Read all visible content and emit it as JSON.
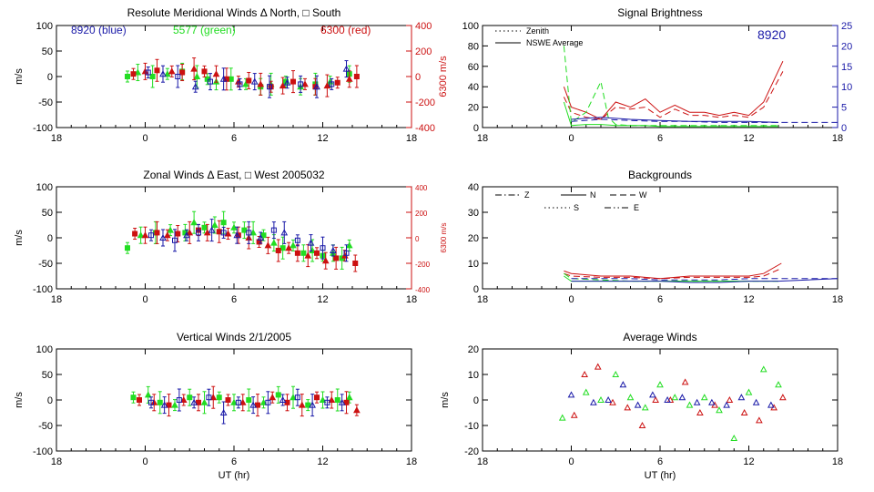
{
  "colors": {
    "blue": "#1a1aa8",
    "green": "#22dd22",
    "red": "#cc1111",
    "axis": "#000000"
  },
  "chart_data": [
    {
      "id": "p1",
      "type": "scatter",
      "title": "Resolute Meridional Winds Δ North, □ South",
      "xlabel": "",
      "ylabel": "m/s",
      "xticks": [
        "18",
        "0",
        "6",
        "12",
        "18"
      ],
      "ylim": [
        -100,
        100
      ],
      "yticks": [
        "100",
        "50",
        "0",
        "-50",
        "-100"
      ],
      "right_axis": {
        "label": "6300 m/s",
        "ylim": [
          -400,
          400
        ],
        "ticks": [
          "400",
          "200",
          "0",
          "-200",
          "-400"
        ]
      },
      "annotations": [
        {
          "text": "8920 (blue)",
          "color": "blue"
        },
        {
          "text": "5577 (green)",
          "color": "green"
        },
        {
          "text": "6300 (red)",
          "color": "red"
        }
      ],
      "series": [
        {
          "color": "green",
          "x": [
            -1.2,
            -0.5,
            0.5,
            1.5,
            2.5,
            3.5,
            4.2,
            4.8,
            5.8,
            6.8,
            7.8,
            8.5,
            9.5,
            10.5,
            11.5,
            12.5,
            13.8
          ],
          "y": [
            0,
            8,
            0,
            5,
            10,
            0,
            -5,
            -10,
            -5,
            -15,
            -20,
            -15,
            -10,
            -20,
            -15,
            -10,
            5
          ]
        },
        {
          "color": "red",
          "x": [
            -0.8,
            0,
            0.8,
            1.8,
            2.5,
            3.3,
            4.0,
            4.8,
            5.5,
            6.3,
            7.0,
            7.8,
            8.5,
            9.3,
            10.0,
            10.8,
            11.5,
            12.3,
            13.0,
            13.8,
            14.3
          ],
          "y": [
            5,
            10,
            12,
            10,
            8,
            15,
            10,
            5,
            -5,
            -10,
            -8,
            -15,
            -20,
            -18,
            -10,
            -15,
            -20,
            -18,
            -12,
            -5,
            0
          ]
        },
        {
          "color": "blue",
          "x": [
            0.2,
            1.2,
            2.2,
            3.4,
            4.4,
            5.3,
            6.4,
            7.4,
            8.4,
            9.6,
            10.5,
            11.6,
            12.6,
            13.6
          ],
          "y": [
            8,
            5,
            0,
            -20,
            -10,
            -5,
            -15,
            -10,
            -20,
            -12,
            -15,
            -20,
            -15,
            15
          ]
        }
      ]
    },
    {
      "id": "p2",
      "type": "line",
      "title": "Signal Brightness",
      "xlabel": "",
      "ylabel": "",
      "xticks": [
        "18",
        "0",
        "6",
        "12",
        "18"
      ],
      "ylim": [
        0,
        100
      ],
      "yticks": [
        "100",
        "80",
        "60",
        "40",
        "20",
        "0"
      ],
      "right_axis": {
        "label": "",
        "ylim": [
          0,
          25
        ],
        "ticks": [
          "25",
          "20",
          "15",
          "10",
          "5",
          "0"
        ]
      },
      "legend": [
        {
          "label": "Zenith",
          "dash": "dotted"
        },
        {
          "label": "NSWE Average",
          "dash": "solid"
        }
      ],
      "annotations": [
        {
          "text": "8920",
          "color": "blue"
        }
      ],
      "series": [
        {
          "color": "red",
          "style": "solid",
          "x": [
            -0.5,
            0,
            1,
            2,
            3,
            4,
            5,
            6,
            7,
            8,
            9,
            10,
            11,
            12,
            13,
            14.3
          ],
          "y": [
            40,
            20,
            15,
            8,
            25,
            20,
            28,
            15,
            22,
            15,
            15,
            12,
            15,
            12,
            25,
            65
          ]
        },
        {
          "color": "red",
          "style": "dashed",
          "x": [
            -0.5,
            0,
            1,
            2,
            3,
            4,
            5,
            6,
            7,
            8,
            9,
            10,
            11,
            12,
            13,
            14.3
          ],
          "y": [
            30,
            15,
            10,
            8,
            20,
            18,
            20,
            10,
            18,
            12,
            12,
            10,
            12,
            10,
            20,
            55
          ]
        },
        {
          "color": "green",
          "style": "solid",
          "x": [
            -0.5,
            0,
            1,
            2,
            3,
            4,
            5,
            6,
            7,
            8,
            9,
            10,
            11,
            12,
            13,
            14
          ],
          "y": [
            25,
            2,
            3,
            3,
            2,
            2,
            2,
            1,
            1,
            1,
            1,
            1,
            1,
            1,
            1,
            1
          ]
        },
        {
          "color": "green",
          "style": "dashed",
          "x": [
            -0.5,
            0,
            1,
            1.5,
            2,
            2.5,
            3,
            4,
            5,
            6,
            7,
            8,
            10,
            12,
            14
          ],
          "y": [
            80,
            5,
            15,
            30,
            45,
            10,
            3,
            2,
            2,
            2,
            2,
            2,
            2,
            2,
            2
          ]
        },
        {
          "color": "blue",
          "style": "solid",
          "x": [
            0,
            2,
            3,
            4,
            6,
            8,
            10,
            12,
            14
          ],
          "y": [
            8,
            10,
            9,
            8,
            7,
            6,
            6,
            6,
            5
          ]
        },
        {
          "color": "blue",
          "style": "dashed",
          "x": [
            0,
            2,
            4,
            6,
            8,
            10,
            12,
            14,
            18
          ],
          "y": [
            6,
            8,
            7,
            6,
            6,
            5,
            5,
            5,
            5
          ]
        }
      ]
    },
    {
      "id": "p3",
      "type": "scatter",
      "title": "Zonal Winds Δ East, □ West 2005032",
      "xlabel": "",
      "ylabel": "m/s",
      "xticks": [
        "18",
        "0",
        "6",
        "12",
        "18"
      ],
      "ylim": [
        -100,
        100
      ],
      "yticks": [
        "100",
        "50",
        "0",
        "-50",
        "-100"
      ],
      "right_axis": {
        "label": "6300 m/s",
        "ylim": [
          -400,
          400
        ],
        "ticks": [
          "400",
          "200",
          "0",
          "-200",
          "-400"
        ]
      },
      "series": [
        {
          "color": "green",
          "x": [
            -1.2,
            -0.3,
            0.7,
            1.7,
            2.7,
            3.3,
            4.0,
            4.7,
            5.3,
            6.0,
            6.7,
            7.3,
            8.0,
            8.7,
            9.3,
            10.0,
            10.7,
            11.3,
            12.0,
            12.7,
            13.3,
            13.8
          ],
          "y": [
            -20,
            5,
            10,
            15,
            10,
            30,
            20,
            25,
            30,
            20,
            15,
            10,
            5,
            -10,
            -20,
            -15,
            -30,
            -25,
            -35,
            -30,
            -40,
            -15
          ]
        },
        {
          "color": "red",
          "x": [
            -0.7,
            0,
            0.8,
            1.5,
            2.2,
            3.0,
            3.6,
            4.2,
            5.0,
            5.6,
            6.3,
            7.0,
            7.7,
            8.3,
            9.0,
            9.7,
            10.3,
            11.0,
            11.6,
            12.2,
            12.9,
            13.5,
            14.2
          ],
          "y": [
            8,
            5,
            10,
            5,
            8,
            10,
            15,
            10,
            12,
            8,
            5,
            0,
            -8,
            -15,
            -25,
            -20,
            -30,
            -35,
            -30,
            -45,
            -40,
            -35,
            -50
          ]
        },
        {
          "color": "blue",
          "x": [
            0.4,
            1.2,
            2.0,
            2.8,
            3.6,
            4.5,
            5.3,
            6.2,
            7.0,
            7.8,
            8.7,
            9.4,
            10.3,
            11.2,
            12.0,
            12.7,
            13.6
          ],
          "y": [
            5,
            0,
            -5,
            5,
            10,
            15,
            10,
            5,
            10,
            0,
            15,
            10,
            -5,
            -10,
            -20,
            -25,
            -30
          ]
        }
      ]
    },
    {
      "id": "p4",
      "type": "line",
      "title": "Backgrounds",
      "xlabel": "",
      "ylabel": "",
      "xticks": [
        "18",
        "0",
        "6",
        "12",
        "18"
      ],
      "ylim": [
        0,
        40
      ],
      "yticks": [
        "40",
        "30",
        "20",
        "10",
        "0"
      ],
      "legend": [
        {
          "label": "Z",
          "dash": "dashdot"
        },
        {
          "label": "N",
          "dash": "solid"
        },
        {
          "label": "W",
          "dash": "dashed"
        },
        {
          "label": "S",
          "dash": "dotted"
        },
        {
          "label": "E",
          "dash": "dashdotdot"
        }
      ],
      "series": [
        {
          "color": "red",
          "style": "solid",
          "x": [
            -0.5,
            0,
            2,
            4,
            6,
            8,
            10,
            12,
            13,
            14.2
          ],
          "y": [
            7,
            6,
            5,
            5,
            4,
            5,
            5,
            5,
            6,
            10
          ]
        },
        {
          "color": "red",
          "style": "dashed",
          "x": [
            -0.5,
            0,
            2,
            4,
            6,
            8,
            10,
            12,
            13,
            14.2
          ],
          "y": [
            6,
            5,
            4.5,
            4.5,
            4,
            4.5,
            4.5,
            4.5,
            5,
            8
          ]
        },
        {
          "color": "green",
          "style": "solid",
          "x": [
            -0.5,
            0,
            2,
            4,
            6,
            8,
            10,
            12,
            14
          ],
          "y": [
            5,
            3,
            3,
            3,
            3,
            3,
            3,
            3,
            3
          ]
        },
        {
          "color": "green",
          "style": "dashed",
          "x": [
            -0.5,
            0,
            2,
            4,
            6,
            8,
            10,
            12,
            14
          ],
          "y": [
            6,
            4,
            3.5,
            3,
            3,
            3,
            3,
            3,
            3
          ]
        },
        {
          "color": "blue",
          "style": "solid",
          "x": [
            0,
            2,
            4,
            6,
            8,
            10,
            12,
            14,
            18
          ],
          "y": [
            3,
            3,
            3,
            3,
            2.5,
            2.5,
            3,
            3,
            4
          ]
        },
        {
          "color": "blue",
          "style": "dashed",
          "x": [
            0,
            2,
            4,
            6,
            8,
            10,
            12,
            14,
            18
          ],
          "y": [
            4,
            4,
            4,
            3.5,
            3.5,
            3.5,
            4,
            4,
            4
          ]
        }
      ]
    },
    {
      "id": "p5",
      "type": "scatter",
      "title": "Vertical Winds 2/1/2005",
      "xlabel": "UT (hr)",
      "ylabel": "m/s",
      "xticks": [
        "18",
        "0",
        "6",
        "12",
        "18"
      ],
      "ylim": [
        -100,
        100
      ],
      "yticks": [
        "100",
        "50",
        "0",
        "-50",
        "-100"
      ],
      "series": [
        {
          "color": "green",
          "x": [
            -0.8,
            0.2,
            1.0,
            2.0,
            3.0,
            4.0,
            5.0,
            6.0,
            7.0,
            8.0,
            9.0,
            10.0,
            11.0,
            12.0,
            13.0,
            13.8
          ],
          "y": [
            5,
            10,
            -5,
            -10,
            5,
            -5,
            5,
            -5,
            0,
            -5,
            10,
            5,
            -10,
            0,
            0,
            5
          ]
        },
        {
          "color": "red",
          "x": [
            -0.4,
            0.6,
            1.6,
            2.6,
            3.6,
            4.6,
            5.6,
            6.6,
            7.6,
            8.6,
            9.6,
            10.6,
            11.6,
            12.6,
            13.6,
            14.3
          ],
          "y": [
            0,
            -5,
            -10,
            0,
            -5,
            5,
            0,
            -5,
            -10,
            5,
            -5,
            -10,
            5,
            0,
            -5,
            -20
          ]
        },
        {
          "color": "blue",
          "x": [
            0.4,
            1.3,
            2.3,
            3.3,
            4.3,
            5.3,
            6.3,
            7.3,
            8.3,
            9.3,
            10.3,
            11.3,
            12.3,
            13.3
          ],
          "y": [
            -5,
            -10,
            0,
            -5,
            5,
            -25,
            -5,
            -10,
            -5,
            0,
            5,
            -10,
            -5,
            -5
          ]
        }
      ]
    },
    {
      "id": "p6",
      "type": "scatter",
      "title": "Average Winds",
      "xlabel": "UT (hr)",
      "ylabel": "m/s",
      "xticks": [
        "18",
        "0",
        "6",
        "12",
        "18"
      ],
      "ylim": [
        -20,
        20
      ],
      "yticks": [
        "20",
        "10",
        "0",
        "-10",
        "-20"
      ],
      "series": [
        {
          "color": "green",
          "x": [
            -0.6,
            1.0,
            2.0,
            3.0,
            4.0,
            5.0,
            6.0,
            7.0,
            8.0,
            9.0,
            10.0,
            11.0,
            12.0,
            13.0,
            14.0
          ],
          "y": [
            -7,
            3,
            0,
            10,
            1,
            -3,
            6,
            1,
            -2,
            1,
            -4,
            -15,
            3,
            12,
            6
          ]
        },
        {
          "color": "red",
          "x": [
            0.2,
            0.9,
            1.8,
            2.8,
            3.8,
            4.8,
            5.7,
            6.7,
            7.7,
            8.7,
            9.7,
            10.7,
            11.7,
            12.7,
            13.7,
            14.3
          ],
          "y": [
            -6,
            10,
            13,
            -1,
            -3,
            -10,
            0,
            0,
            7,
            -5,
            -2,
            0,
            -5,
            -8,
            -3,
            1
          ]
        },
        {
          "color": "blue",
          "x": [
            0,
            1.5,
            2.5,
            3.5,
            4.5,
            5.5,
            6.5,
            7.5,
            8.5,
            9.5,
            10.5,
            11.5,
            12.5,
            13.5
          ],
          "y": [
            2,
            -1,
            0,
            6,
            -2,
            2,
            0,
            1,
            -1,
            -1,
            -2,
            1,
            -1,
            -2
          ]
        }
      ]
    }
  ]
}
